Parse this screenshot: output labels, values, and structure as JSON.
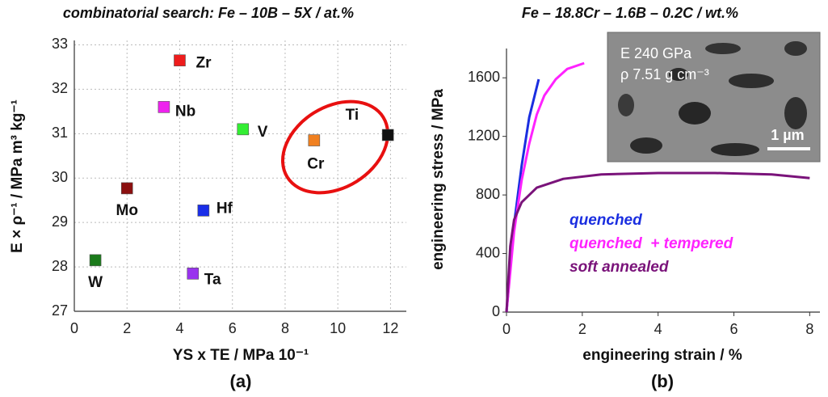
{
  "chart_data": [
    {
      "type": "scatter",
      "title": "combinatorial search: Fe – 10B – 5X / at.%",
      "x_label": "YS x TE / MPa 10⁻¹",
      "y_label": "E × ρ⁻¹ / MPa m³ kg⁻¹",
      "caption": "(a)",
      "xlim": [
        0,
        12.6
      ],
      "xticks": [
        0,
        2,
        4,
        6,
        8,
        10,
        12
      ],
      "ylim": [
        27,
        33.1
      ],
      "yticks": [
        27,
        28,
        29,
        30,
        31,
        32,
        33
      ],
      "grid": true,
      "points": [
        {
          "label": "Zr",
          "x": 4.0,
          "y": 32.65,
          "color": "#ee1c1c"
        },
        {
          "label": "Nb",
          "x": 3.4,
          "y": 31.6,
          "color": "#ee22ee"
        },
        {
          "label": "V",
          "x": 6.4,
          "y": 31.1,
          "color": "#33ee33"
        },
        {
          "label": "Cr",
          "x": 9.1,
          "y": 30.85,
          "color": "#f08020"
        },
        {
          "label": "Ti",
          "x": 11.9,
          "y": 30.97,
          "color": "#111111"
        },
        {
          "label": "Mo",
          "x": 2.0,
          "y": 29.77,
          "color": "#8b1010"
        },
        {
          "label": "Hf",
          "x": 4.9,
          "y": 29.27,
          "color": "#1a2ee8"
        },
        {
          "label": "W",
          "x": 0.8,
          "y": 28.15,
          "color": "#1a7a1a"
        },
        {
          "label": "Ta",
          "x": 4.5,
          "y": 27.85,
          "color": "#9933ee"
        }
      ]
    },
    {
      "type": "line",
      "title": "Fe – 18.8Cr – 1.6B – 0.2C / wt.%",
      "x_label": "engineering strain / %",
      "y_label": "engineering stress / MPa",
      "caption": "(b)",
      "xlim": [
        0,
        8.27
      ],
      "xticks": [
        0,
        2,
        4,
        6,
        8
      ],
      "ylim": [
        0,
        1800
      ],
      "yticks": [
        0,
        400,
        800,
        1200,
        1600
      ],
      "series": [
        {
          "name": "quenched",
          "color": "#1a2ee0",
          "x": [
            0,
            0.2,
            0.4,
            0.6,
            0.85
          ],
          "values": [
            0,
            600,
            1000,
            1330,
            1590
          ]
        },
        {
          "name": "quenched  + tempered",
          "color": "#ff22ff",
          "x": [
            0,
            0.2,
            0.4,
            0.6,
            0.8,
            1.0,
            1.3,
            1.6,
            2.05
          ],
          "values": [
            0,
            550,
            900,
            1150,
            1350,
            1480,
            1590,
            1660,
            1700
          ]
        },
        {
          "name": "soft annealed",
          "color": "#7a137a",
          "x": [
            0,
            0.1,
            0.2,
            0.4,
            0.8,
            1.5,
            2.5,
            4,
            5.5,
            7,
            8
          ],
          "values": [
            0,
            450,
            630,
            750,
            850,
            910,
            940,
            950,
            950,
            940,
            915
          ]
        }
      ],
      "inset": {
        "lines": [
          "E 240 GPa",
          "ρ 7.51 g cm⁻³"
        ],
        "scale_bar": "1 µm"
      }
    }
  ]
}
